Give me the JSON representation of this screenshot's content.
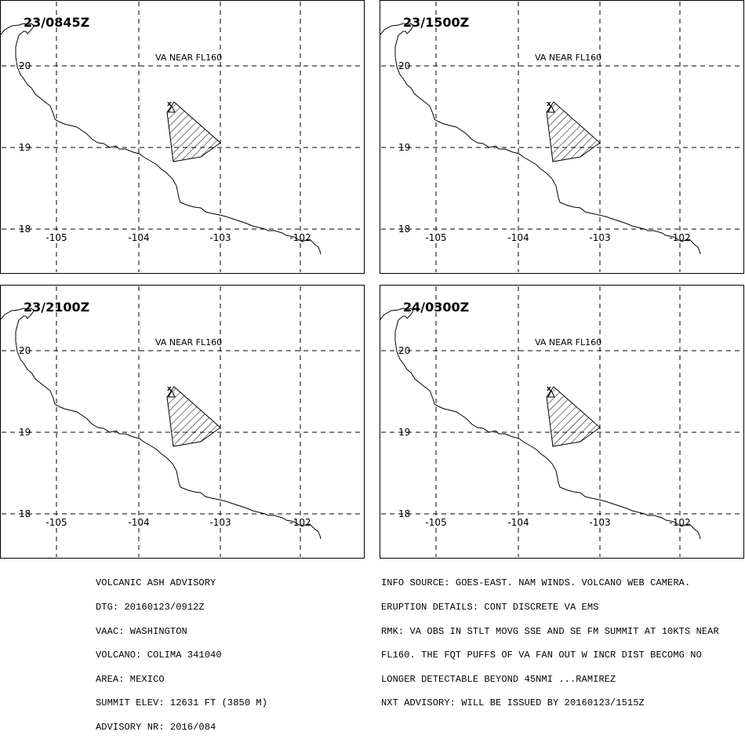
{
  "panels": [
    {
      "time_label": "23/0845Z",
      "annotation": "VA NEAR FL160"
    },
    {
      "time_label": "23/1500Z",
      "annotation": "VA NEAR FL160"
    },
    {
      "time_label": "23/2100Z",
      "annotation": "VA NEAR FL160"
    },
    {
      "time_label": "24/0300Z",
      "annotation": "VA NEAR FL160"
    }
  ],
  "axes": {
    "lat_labels": [
      "20",
      "19",
      "18"
    ],
    "lon_labels": [
      "-105",
      "-104",
      "-103",
      "-102"
    ]
  },
  "advisory_left": [
    "VOLCANIC ASH ADVISORY",
    "DTG: 20160123/0912Z",
    "VAAC: WASHINGTON",
    "VOLCANO: COLIMA 341040",
    "AREA: MEXICO",
    "SUMMIT ELEV: 12631 FT (3850 M)",
    "ADVISORY NR: 2016/084"
  ],
  "advisory_right": [
    "INFO SOURCE: GOES-EAST. NAM WINDS. VOLCANO WEB CAMERA.",
    "ERUPTION DETAILS: CONT DISCRETE VA EMS",
    "RMK: VA OBS IN STLT MOVG SSE AND SE FM SUMMIT AT 10KTS NEAR",
    "FL160. THE FQT PUFFS OF VA FAN OUT W INCR DIST BECOMG NO",
    "LONGER DETECTABLE BEYOND 45NMI ...RAMIREZ",
    "NXT ADVISORY: WILL BE ISSUED BY 20160123/1515Z"
  ]
}
